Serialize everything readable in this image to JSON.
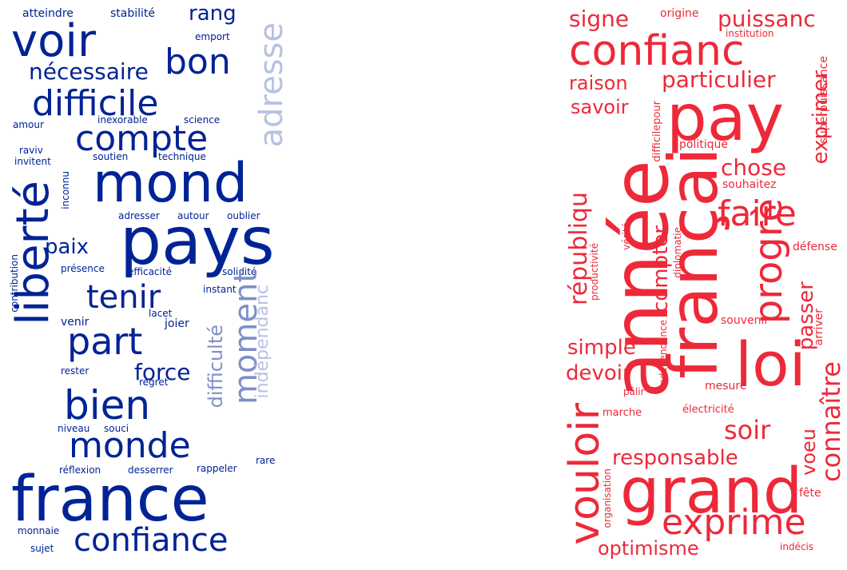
{
  "colors": {
    "blue": "#002395",
    "blue_light": "#b8c1e3",
    "blue_mid": "#7f8fc7",
    "red": "#ed2939"
  },
  "left_words": [
    "atteindre",
    "stabilité",
    "rang",
    "voir",
    "emport",
    "bon",
    "nécessaire",
    "adresse",
    "difficile",
    "amour",
    "inexorable",
    "science",
    "compte",
    "raviv",
    "invitent",
    "soutien",
    "technique",
    "mond",
    "inconnu",
    "liberté",
    "adresser",
    "autour",
    "oublier",
    "pays",
    "paix",
    "contribution",
    "présence",
    "efficacité",
    "solidité",
    "instant",
    "tenir",
    "lacet",
    "moment",
    "venir",
    "joier",
    "part",
    "difficulté",
    "indépendanc",
    "rester",
    "force",
    "regret",
    "bien",
    "niveau",
    "souci",
    "monde",
    "rare",
    "réflexion",
    "desserrer",
    "rappeler",
    "france",
    "monnaie",
    "sujet",
    "confiance"
  ],
  "right_words": [
    "signe",
    "origine",
    "puissanc",
    "institution",
    "confianc",
    "superpuissance",
    "raison",
    "particulier",
    "savoir",
    "pay",
    "exprimer",
    "difficilepour",
    "politique",
    "année",
    "chose",
    "souhaitez",
    "françai",
    "faire",
    "républiqu",
    "diplomatie",
    "vérité",
    "productivité",
    "compter",
    "défense",
    "progrè",
    "passer",
    "souvenir",
    "arriver",
    "indépendance",
    "simple",
    "loi",
    "devoir",
    "pâlir",
    "connaître",
    "mesure",
    "soir",
    "électricité",
    "marche",
    "voeu",
    "vouloir",
    "responsable",
    "organisation",
    "grand",
    "fête",
    "exprime",
    "optimisme",
    "indécis"
  ]
}
